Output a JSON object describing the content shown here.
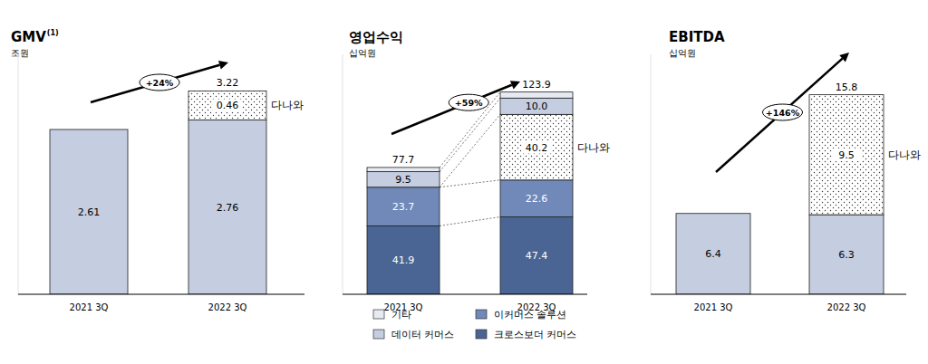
{
  "chart_data": [
    {
      "type": "bar",
      "title": "GMV",
      "title_superscript": "(1)",
      "subtitle": "조원",
      "categories": [
        "2021 3Q",
        "2022 3Q"
      ],
      "series": [
        {
          "color": "#c5cde0",
          "values": [
            2.61,
            2.76
          ]
        },
        {
          "name": "다나와",
          "color": "#ffffff",
          "marker": "dots",
          "values": [
            null,
            0.46
          ]
        }
      ],
      "totals": [
        null,
        3.22
      ],
      "annotation": "+24%",
      "ylim": [
        0,
        3.8
      ],
      "stacked": true,
      "data_labels": true,
      "tick_labels": false
    },
    {
      "type": "bar",
      "title": "영업수익",
      "subtitle": "십억원",
      "categories": [
        "2021 3Q",
        "2022 3Q"
      ],
      "series": [
        {
          "name": "크로스보더 커머스",
          "color": "#4a6594",
          "values": [
            41.9,
            47.4
          ]
        },
        {
          "name": "이커머스 솔루션",
          "color": "#7089b8",
          "values": [
            23.7,
            22.6
          ]
        },
        {
          "name": "다나와",
          "color": "#ffffff",
          "marker": "dots",
          "values": [
            null,
            40.2
          ]
        },
        {
          "name": "데이터 커머스",
          "color": "#c5cde0",
          "values": [
            9.5,
            10.0
          ],
          "value_labels": [
            "9.5",
            "10.0"
          ]
        },
        {
          "name": "기타",
          "color": "#e6eaf3",
          "values": [
            2.6,
            3.7
          ],
          "value_labels": [
            null,
            null
          ]
        }
      ],
      "totals": [
        77.7,
        123.9
      ],
      "annotation": "+59%",
      "ylim": [
        0,
        147
      ],
      "stacked": true,
      "data_labels": true,
      "tick_labels": false,
      "legend": "bottom"
    },
    {
      "type": "bar",
      "title": "EBITDA",
      "subtitle": "십억원",
      "categories": [
        "2021 3Q",
        "2022 3Q"
      ],
      "series": [
        {
          "color": "#c5cde0",
          "values": [
            6.4,
            6.3
          ]
        },
        {
          "name": "다나와",
          "color": "#ffffff",
          "marker": "dots",
          "values": [
            null,
            9.5
          ]
        }
      ],
      "totals": [
        null,
        15.8
      ],
      "annotation": "+146%",
      "ylim": [
        0,
        19
      ],
      "stacked": true,
      "data_labels": true,
      "tick_labels": false
    }
  ]
}
